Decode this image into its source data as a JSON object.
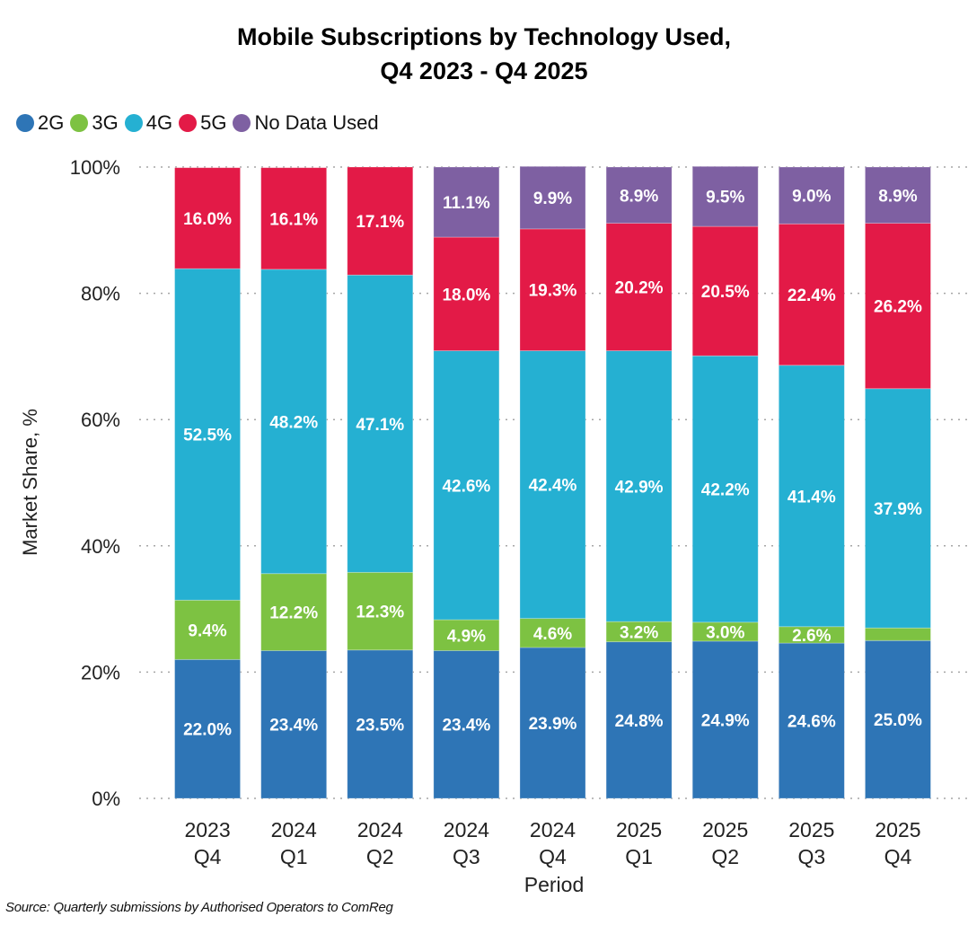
{
  "chart_data": {
    "type": "bar",
    "stacked": true,
    "title_lines": [
      "Mobile Subscriptions by Technology Used,",
      "Q4 2023 - Q4 2025"
    ],
    "xlabel": "Period",
    "ylabel": "Market Share, %",
    "ylim": [
      0,
      100
    ],
    "yticks": [
      "0%",
      "20%",
      "40%",
      "60%",
      "80%",
      "100%"
    ],
    "grid": "horizontal-dotted",
    "legend_position": "top-left",
    "categories": [
      [
        "2023",
        "Q4"
      ],
      [
        "2024",
        "Q1"
      ],
      [
        "2024",
        "Q2"
      ],
      [
        "2024",
        "Q3"
      ],
      [
        "2024",
        "Q4"
      ],
      [
        "2025",
        "Q1"
      ],
      [
        "2025",
        "Q2"
      ],
      [
        "2025",
        "Q3"
      ],
      [
        "2025",
        "Q4"
      ]
    ],
    "series": [
      {
        "name": "2G",
        "color": "#2E75B6",
        "values": [
          22.0,
          23.4,
          23.5,
          23.4,
          23.9,
          24.8,
          24.9,
          24.6,
          25.0
        ],
        "labels": [
          "22.0%",
          "23.4%",
          "23.5%",
          "23.4%",
          "23.9%",
          "24.8%",
          "24.9%",
          "24.6%",
          "25.0%"
        ]
      },
      {
        "name": "3G",
        "color": "#7DC242",
        "values": [
          9.4,
          12.2,
          12.3,
          4.9,
          4.6,
          3.2,
          3.0,
          2.6,
          2.0
        ],
        "labels": [
          "9.4%",
          "12.2%",
          "12.3%",
          "4.9%",
          "4.6%",
          "3.2%",
          "3.0%",
          "2.6%",
          ""
        ]
      },
      {
        "name": "4G",
        "color": "#25B0D2",
        "values": [
          52.5,
          48.2,
          47.1,
          42.6,
          42.4,
          42.9,
          42.2,
          41.4,
          37.9
        ],
        "labels": [
          "52.5%",
          "48.2%",
          "47.1%",
          "42.6%",
          "42.4%",
          "42.9%",
          "42.2%",
          "41.4%",
          "37.9%"
        ]
      },
      {
        "name": "5G",
        "color": "#E31A47",
        "values": [
          16.0,
          16.1,
          17.1,
          18.0,
          19.3,
          20.2,
          20.5,
          22.4,
          26.2
        ],
        "labels": [
          "16.0%",
          "16.1%",
          "17.1%",
          "18.0%",
          "19.3%",
          "20.2%",
          "20.5%",
          "22.4%",
          "26.2%"
        ]
      },
      {
        "name": "No Data Used",
        "color": "#7E60A2",
        "values": [
          0,
          0,
          0,
          11.1,
          9.9,
          8.9,
          9.5,
          9.0,
          8.9
        ],
        "labels": [
          "",
          "",
          "",
          "11.1%",
          "9.9%",
          "8.9%",
          "9.5%",
          "9.0%",
          "8.9%"
        ]
      }
    ]
  },
  "source_note": "Source: Quarterly submissions by Authorised Operators to ComReg"
}
